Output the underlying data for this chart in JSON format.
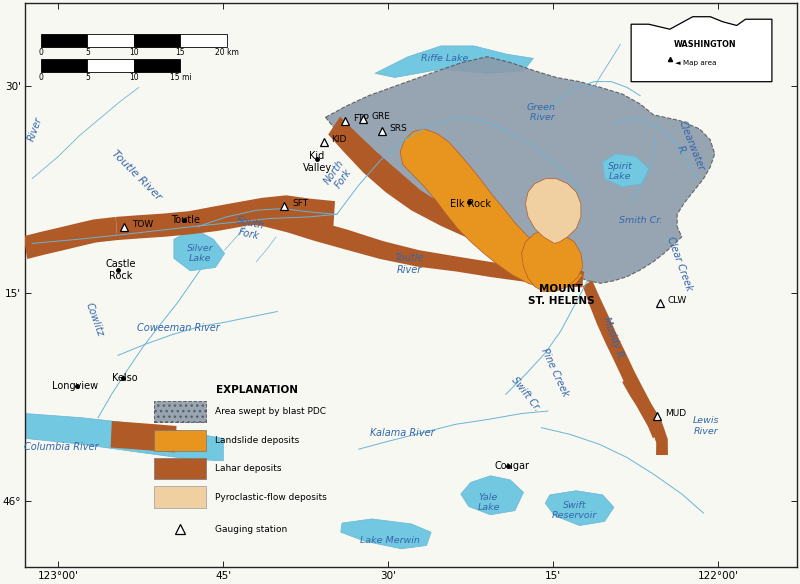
{
  "background_color": "#f8f8f3",
  "map_background": "#f8f8f3",
  "xlim": [
    -123.05,
    -121.88
  ],
  "ylim": [
    45.92,
    46.6
  ],
  "xticks": [
    -123.0,
    -122.75,
    -122.5,
    -122.25,
    -122.0
  ],
  "yticks": [
    46.0,
    46.25,
    46.5
  ],
  "xtick_labels": [
    "123°00'",
    "45'",
    "30'",
    "15'",
    "122°00'"
  ],
  "ytick_labels": [
    "46°",
    "15'",
    "30'"
  ],
  "colors": {
    "blast_pdc": "#8a9aaa",
    "landslide": "#e8951f",
    "lahar": "#b05a28",
    "pyro_flow": "#f0d0a0",
    "water": "#72c8e0",
    "river_line": "#6ab4d4",
    "land": "#f8f8f3"
  }
}
